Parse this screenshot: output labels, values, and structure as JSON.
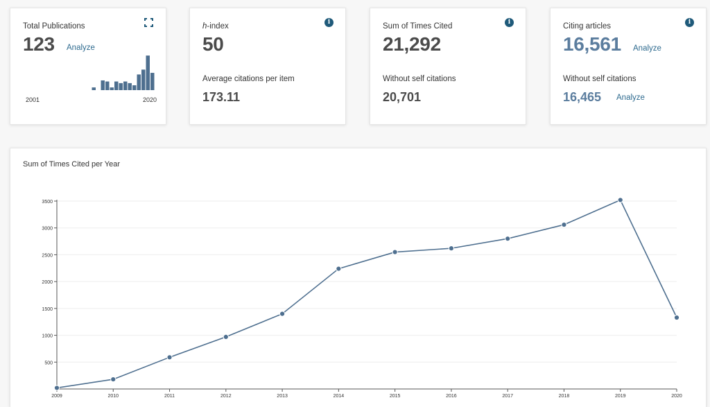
{
  "cards": {
    "total_publications": {
      "title": "Total Publications",
      "value": "123",
      "analyze": "Analyze",
      "year_start": "2001",
      "year_end": "2020",
      "bar_values": [
        0,
        0,
        0,
        0,
        0,
        0,
        0.05,
        0,
        0.18,
        0.16,
        0.05,
        0.16,
        0.13,
        0.16,
        0.13,
        0.09,
        0.29,
        0.38,
        0.64,
        0.32
      ],
      "icon": "expand-icon"
    },
    "h_index": {
      "title_italic": "h",
      "title_rest": "-index",
      "value": "50",
      "sub_label": "Average citations per item",
      "sub_value": "173.11",
      "icon": "info-icon"
    },
    "times_cited": {
      "title": "Sum of Times Cited",
      "value": "21,292",
      "sub_label": "Without self citations",
      "sub_value": "20,701",
      "icon": "info-icon"
    },
    "citing_articles": {
      "title": "Citing articles",
      "value": "16,561",
      "analyze": "Analyze",
      "sub_label": "Without self citations",
      "sub_value": "16,465",
      "sub_analyze": "Analyze",
      "icon": "info-icon"
    }
  },
  "chart_title": "Sum of Times Cited per Year",
  "chart_data": {
    "type": "line",
    "x": [
      "2009",
      "2010",
      "2011",
      "2012",
      "2013",
      "2014",
      "2015",
      "2016",
      "2017",
      "2018",
      "2019",
      "2020"
    ],
    "series": [
      {
        "values": [
          20,
          180,
          590,
          970,
          1400,
          2240,
          2550,
          2620,
          2800,
          3060,
          3520,
          1330
        ]
      }
    ],
    "yticks": [
      500,
      1000,
      1500,
      2000,
      2500,
      3000,
      3500
    ],
    "ylim": [
      0,
      3500
    ],
    "grid": true,
    "color": "#4e6f8f"
  },
  "colors": {
    "bar": "#4e6f8f",
    "info_bg": "#1f5a7a",
    "link": "#2f6b8f"
  }
}
